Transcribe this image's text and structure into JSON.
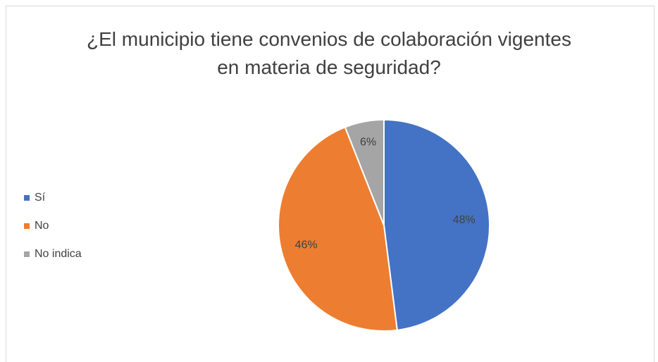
{
  "chart_data": {
    "type": "pie",
    "title": "¿El municipio tiene convenios de colaboración vigentes en materia de seguridad?",
    "categories": [
      "Sí",
      "No",
      "No indica"
    ],
    "values": [
      48,
      46,
      6
    ],
    "value_labels": [
      "48%",
      "46%",
      "6%"
    ],
    "colors": [
      "#4472c4",
      "#ed7d31",
      "#a5a5a5"
    ],
    "legend": "left"
  }
}
